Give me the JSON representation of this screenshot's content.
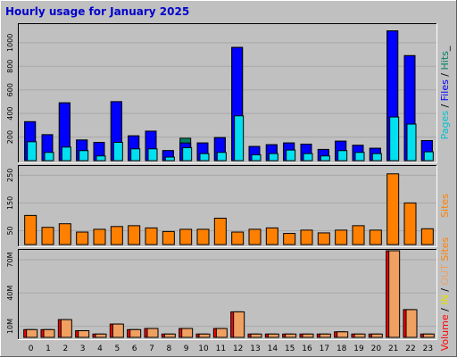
{
  "chart_data": {
    "type": "bar",
    "title": "Hourly usage for January 2025",
    "categories": [
      "0",
      "1",
      "2",
      "3",
      "4",
      "5",
      "6",
      "7",
      "8",
      "9",
      "10",
      "11",
      "12",
      "13",
      "14",
      "15",
      "16",
      "17",
      "18",
      "19",
      "20",
      "21",
      "22",
      "23"
    ],
    "panels": [
      {
        "name": "hits-files-pages",
        "ylim": [
          0,
          1150
        ],
        "yticks": [
          "200",
          "400",
          "600",
          "800",
          "1000"
        ],
        "ytick_values": [
          200,
          400,
          600,
          800,
          1000
        ],
        "legend": [
          {
            "text": "Pages",
            "color": "#00c0d0"
          },
          {
            "text": " / ",
            "color": "#000000"
          },
          {
            "text": "Files",
            "color": "#0000ff"
          },
          {
            "text": " / ",
            "color": "#000000"
          },
          {
            "text": "Hits",
            "color": "#008060"
          },
          {
            "text": "_",
            "color": "#000000"
          }
        ],
        "series": [
          {
            "name": "Hits",
            "color": "#008060",
            "values": [
              330,
              220,
              490,
              175,
              155,
              500,
              210,
              250,
              85,
              190,
              150,
              195,
              960,
              120,
              135,
              150,
              140,
              95,
              165,
              130,
              105,
              1100,
              890,
              170
            ]
          },
          {
            "name": "Files",
            "color": "#0000ff",
            "values": [
              330,
              220,
              490,
              175,
              155,
              500,
              210,
              250,
              85,
              150,
              150,
              195,
              960,
              120,
              135,
              150,
              140,
              95,
              165,
              130,
              105,
              1100,
              890,
              170
            ]
          },
          {
            "name": "Pages",
            "color": "#00e0f0",
            "values": [
              160,
              70,
              115,
              85,
              40,
              155,
              100,
              100,
              30,
              110,
              60,
              70,
              380,
              50,
              60,
              90,
              60,
              40,
              85,
              70,
              60,
              370,
              310,
              75
            ]
          }
        ]
      },
      {
        "name": "sites",
        "ylim": [
          0,
          280
        ],
        "yticks": [
          "50",
          "150",
          "250"
        ],
        "ytick_values": [
          50,
          150,
          250
        ],
        "legend": [
          {
            "text": "Sites",
            "color": "#ff8000"
          }
        ],
        "series": [
          {
            "name": "Sites",
            "color": "#ff8000",
            "values": [
              105,
              62,
              75,
              45,
              55,
              65,
              68,
              60,
              47,
              55,
              55,
              95,
              45,
              55,
              60,
              40,
              52,
              42,
              52,
              68,
              52,
              255,
              150,
              57
            ]
          }
        ]
      },
      {
        "name": "volume",
        "ylim": [
          0,
          78
        ],
        "yticks": [
          "10M",
          "40M",
          "70M"
        ],
        "ytick_values": [
          10,
          40,
          70
        ],
        "legend": [
          {
            "text": "Volume",
            "color": "#ff0000"
          },
          {
            "text": " / ",
            "color": "#000000"
          },
          {
            "text": "IN",
            "color": "#e0e000"
          },
          {
            "text": " / ",
            "color": "#000000"
          },
          {
            "text": "OUT",
            "color": "#f0a060"
          },
          {
            "text": " ",
            "color": "#000000"
          },
          {
            "text": "Sites",
            "color": "#ff8000"
          }
        ],
        "series": [
          {
            "name": "Volume",
            "color": "#ff0000",
            "values": [
              7,
              7,
              16,
              6,
              3,
              12,
              7,
              8,
              3,
              8,
              3,
              8,
              23,
              3,
              3,
              3,
              3,
              3,
              5,
              3,
              3,
              78,
              25,
              3
            ]
          },
          {
            "name": "OUT",
            "color": "#f0a060",
            "values": [
              7,
              7,
              16,
              6,
              3,
              12,
              7,
              8,
              3,
              8,
              3,
              8,
              23,
              3,
              3,
              3,
              3,
              3,
              5,
              3,
              3,
              78,
              25,
              3
            ]
          }
        ]
      }
    ]
  }
}
